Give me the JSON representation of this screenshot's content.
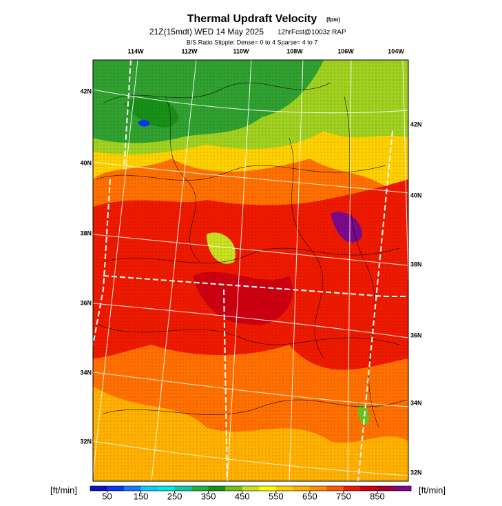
{
  "header": {
    "title": "Thermal Updraft Velocity",
    "title_unit": "(fpm)",
    "valid": "21Z(15mdt) WED 14 May 2025",
    "forecast": "12hrFcst@1003z RAP",
    "stipple": "B/S Ratio Stipple:  Dense= 0 to 4  Sparse= 4 to 7"
  },
  "map": {
    "lon_labels": [
      "114W",
      "112W",
      "110W",
      "108W",
      "106W",
      "104W"
    ],
    "lat_labels_left": [
      "42N",
      "40N",
      "38N",
      "36N",
      "34N",
      "32N"
    ],
    "lat_labels_right": [
      "42N",
      "40N",
      "38N",
      "36N",
      "34N",
      "32N"
    ]
  },
  "colorbar": {
    "unit": "[ft/min]",
    "lim": [
      0,
      950
    ],
    "ticks": [
      50,
      150,
      250,
      350,
      450,
      550,
      650,
      750,
      850
    ],
    "colors": [
      "#1010c0",
      "#0838f0",
      "#1a78ff",
      "#10c8ff",
      "#00e8e8",
      "#10c8a0",
      "#20b040",
      "#189018",
      "#70c020",
      "#c8e020",
      "#ffff00",
      "#ffd000",
      "#ffb000",
      "#ff8c00",
      "#ff5a00",
      "#ee1a00",
      "#cc0010",
      "#a00030",
      "#7a0a8a"
    ]
  }
}
